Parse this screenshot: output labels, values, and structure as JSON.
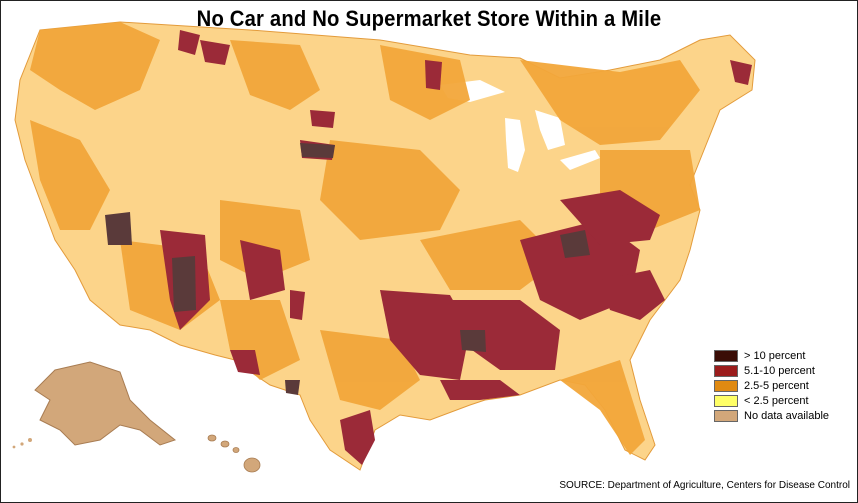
{
  "title": "No Car and No Supermarket Store Within a Mile",
  "legend": {
    "items": [
      {
        "label": "> 10 percent",
        "color": "#3a0d06"
      },
      {
        "label": "5.1-10 percent",
        "color": "#9b1c1c"
      },
      {
        "label": "2.5-5 percent",
        "color": "#e08a12"
      },
      {
        "label": "< 2.5 percent",
        "color": "#ffff66"
      },
      {
        "label": "No data available",
        "color": "#d2a77a"
      }
    ]
  },
  "source": "SOURCE: Department of Agriculture, Centers for Disease Control",
  "map_colors": {
    "base": "#fcd48a",
    "mid": "#f2a63a",
    "high": "#9b2a38",
    "very_high": "#5a3a3a",
    "no_data": "#d2a77a"
  }
}
